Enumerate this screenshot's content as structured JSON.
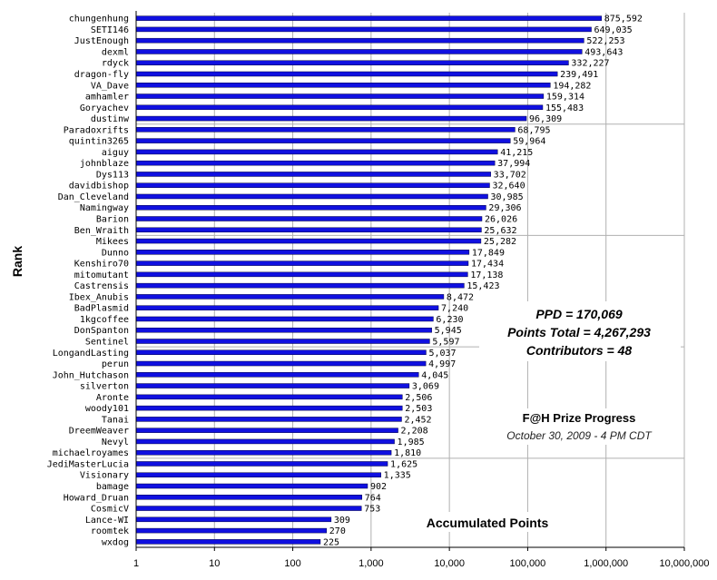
{
  "chart_data": {
    "type": "bar",
    "orientation": "horizontal",
    "x_scale": "log",
    "xlim": [
      1,
      10000000
    ],
    "x_ticks": [
      "1",
      "10",
      "100",
      "1,000",
      "10,000",
      "100,000",
      "1,000,000",
      "10,000,000"
    ],
    "xlabel": "Accumulated Points",
    "ylabel": "Rank",
    "bar_color": "#1010e0",
    "grid": "x-major",
    "categories": [
      "chungenhung",
      "SETI146",
      "JustEnough",
      "dexml",
      "rdyck",
      "dragon-fly",
      "VA_Dave",
      "amhamler",
      "Goryachev",
      "dustinw",
      "Paradoxrifts",
      "quintin3265",
      "aiguy",
      "johnblaze",
      "Dys113",
      "davidbishop",
      "Dan_Cleveland",
      "Namingway",
      "Barion",
      "Ben_Wraith",
      "Mikees",
      "Dunno",
      "Kenshiro70",
      "mitomutant",
      "Castrensis",
      "Ibex_Anubis",
      "BadPlasmid",
      "1kgcoffee",
      "DonSpanton",
      "Sentinel",
      "LongandLasting",
      "perun",
      "John_Hutchason",
      "silverton",
      "Aronte",
      "woody101",
      "Tanai",
      "DreemWeaver",
      "Nevyl",
      "michaelroyames",
      "JediMasterLucia",
      "Visionary",
      "bamage",
      "Howard_Druan",
      "CosmicV",
      "Lance-WI",
      "roomtek",
      "wxdog"
    ],
    "values": [
      875592,
      649035,
      522253,
      493643,
      332227,
      239491,
      194282,
      159314,
      155483,
      96309,
      68795,
      59964,
      41215,
      37994,
      33702,
      32640,
      30985,
      29306,
      26026,
      25632,
      25282,
      17849,
      17434,
      17138,
      15423,
      8472,
      7240,
      6230,
      5945,
      5597,
      5037,
      4997,
      4045,
      3069,
      2506,
      2503,
      2452,
      2208,
      1985,
      1810,
      1625,
      1335,
      902,
      764,
      753,
      309,
      270,
      225
    ],
    "value_labels": [
      "875,592",
      "649,035",
      "522,253",
      "493,643",
      "332,227",
      "239,491",
      "194,282",
      "159,314",
      "155,483",
      "96,309",
      "68,795",
      "59,964",
      "41,215",
      "37,994",
      "33,702",
      "32,640",
      "30,985",
      "29,306",
      "26,026",
      "25,632",
      "25,282",
      "17,849",
      "17,434",
      "17,138",
      "15,423",
      "8,472",
      "7,240",
      "6,230",
      "5,945",
      "5,597",
      "5,037",
      "4,997",
      "4,045",
      "3,069",
      "2,506",
      "2,503",
      "2,452",
      "2,208",
      "1,985",
      "1,810",
      "1,625",
      "1,335",
      "902",
      "764",
      "753",
      "309",
      "270",
      "225"
    ],
    "annotations": {
      "ppd": "PPD = 170,069",
      "points_total": "Points Total = 4,267,293",
      "contributors": "Contributors = 48",
      "prize_title": "F@H Prize Progress",
      "date": "October 30, 2009 - 4 PM CDT"
    }
  }
}
